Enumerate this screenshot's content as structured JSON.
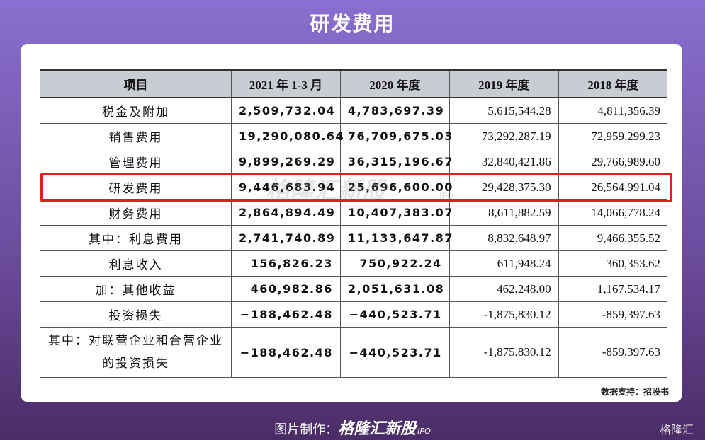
{
  "header": {
    "title": "研发费用"
  },
  "table": {
    "columns": [
      "项目",
      "2021 年 1-3 月",
      "2020 年度",
      "2019 年度",
      "2018 年度"
    ],
    "rows": [
      [
        "税金及附加",
        "2,509,732.04",
        "4,783,697.39",
        "5,615,544.28",
        "4,811,356.39"
      ],
      [
        "销售费用",
        "19,290,080.64",
        "76,709,675.03",
        "73,292,287.19",
        "72,959,299.23"
      ],
      [
        "管理费用",
        "9,899,269.29",
        "36,315,196.67",
        "32,840,421.86",
        "29,766,989.60"
      ],
      [
        "研发费用",
        "9,446,683.94",
        "25,696,600.00",
        "29,428,375.30",
        "26,564,991.04"
      ],
      [
        "财务费用",
        "2,864,894.49",
        "10,407,383.07",
        "8,611,882.59",
        "14,066,778.24"
      ],
      [
        "其中：利息费用",
        "2,741,740.89",
        "11,133,647.87",
        "8,832,648.97",
        "9,466,355.52"
      ],
      [
        "利息收入",
        "156,826.23",
        "750,922.24",
        "611,948.24",
        "360,353.62"
      ],
      [
        "加：其他收益",
        "460,982.86",
        "2,051,631.08",
        "462,248.00",
        "1,167,534.17"
      ],
      [
        "投资损失",
        "−188,462.48",
        "−440,523.71",
        "-1,875,830.12",
        "-859,397.63"
      ],
      [
        "其中：对联营企业和合营企业的投资损失",
        "−188,462.48",
        "−440,523.71",
        "-1,875,830.12",
        "-859,397.63"
      ]
    ]
  },
  "watermark": {
    "brand": "格隆汇新股",
    "tag": "IPO"
  },
  "source": "数据支持：招股书",
  "footer": {
    "label": "图片制作：",
    "brand": "格隆汇新股",
    "tag": "IPO",
    "logo": "格隆汇"
  }
}
